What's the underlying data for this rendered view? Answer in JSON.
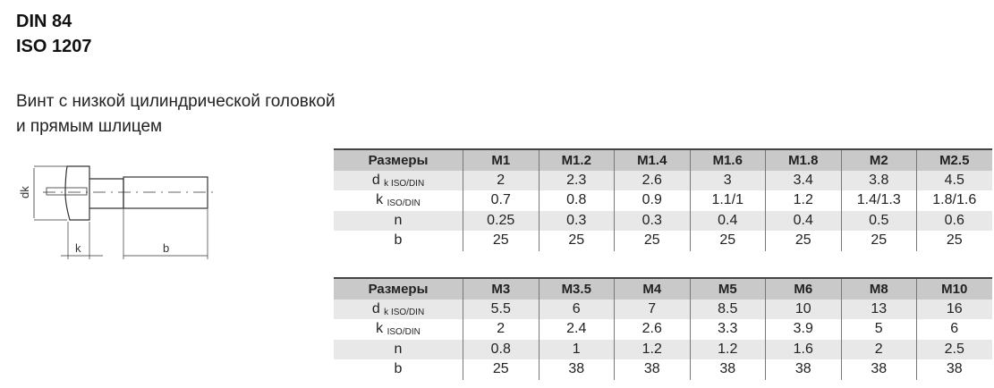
{
  "title": [
    "DIN 84",
    "ISO 1207"
  ],
  "description": [
    "Винт с низкой цилиндрической головкой",
    "и прямым шлицем"
  ],
  "drawing_labels": {
    "dk": "dk",
    "k": "k",
    "b": "b"
  },
  "tables": [
    {
      "header": [
        "Размеры",
        "M1",
        "M1.2",
        "M1.4",
        "M1.6",
        "M1.8",
        "M2",
        "M2.5"
      ],
      "rows": [
        {
          "label": "d",
          "sub": "k ISO/DIN",
          "values": [
            "2",
            "2.3",
            "2.6",
            "3",
            "3.4",
            "3.8",
            "4.5"
          ]
        },
        {
          "label": "k",
          "sub": "ISO/DIN",
          "values": [
            "0.7",
            "0.8",
            "0.9",
            "1.1/1",
            "1.2",
            "1.4/1.3",
            "1.8/1.6"
          ]
        },
        {
          "label": "n",
          "sub": "",
          "values": [
            "0.25",
            "0.3",
            "0.3",
            "0.4",
            "0.4",
            "0.5",
            "0.6"
          ]
        },
        {
          "label": "b",
          "sub": "",
          "values": [
            "25",
            "25",
            "25",
            "25",
            "25",
            "25",
            "25"
          ]
        }
      ]
    },
    {
      "header": [
        "Размеры",
        "M3",
        "M3.5",
        "M4",
        "M5",
        "M6",
        "M8",
        "M10"
      ],
      "rows": [
        {
          "label": "d",
          "sub": "k ISO/DIN",
          "values": [
            "5.5",
            "6",
            "7",
            "8.5",
            "10",
            "13",
            "16"
          ]
        },
        {
          "label": "k",
          "sub": "ISO/DIN",
          "values": [
            "2",
            "2.4",
            "2.6",
            "3.3",
            "3.9",
            "5",
            "6"
          ]
        },
        {
          "label": "n",
          "sub": "",
          "values": [
            "0.8",
            "1",
            "1.2",
            "1.2",
            "1.6",
            "2",
            "2.5"
          ]
        },
        {
          "label": "b",
          "sub": "",
          "values": [
            "25",
            "38",
            "38",
            "38",
            "38",
            "38",
            "38"
          ]
        }
      ]
    }
  ]
}
